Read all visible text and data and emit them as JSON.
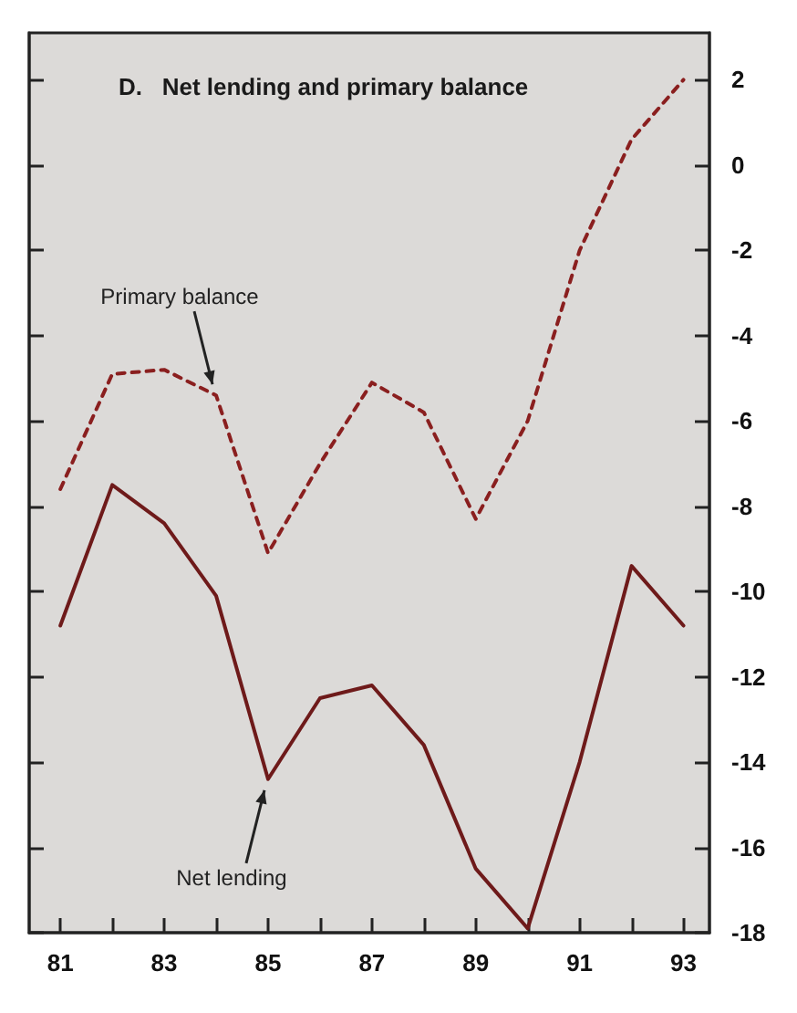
{
  "chart_data": {
    "type": "line",
    "title": "D.   Net lending and primary balance",
    "x": [
      81,
      82,
      83,
      84,
      85,
      86,
      87,
      88,
      89,
      90,
      91,
      92,
      93
    ],
    "series": [
      {
        "color": "#8a1f1f",
        "line_style": "dashed",
        "values": [
          -7.6,
          -4.9,
          -4.8,
          -5.4,
          -9.1,
          -7.0,
          -5.1,
          -5.8,
          -8.3,
          -6.0,
          -2.0,
          0.6,
          2.0
        ]
      },
      {
        "color": "#6e1a1a",
        "line_style": "solid",
        "values": [
          -10.8,
          -7.5,
          -8.4,
          -10.1,
          -14.4,
          -12.5,
          -12.2,
          -13.6,
          -16.5,
          -17.9,
          -14.0,
          -9.4,
          -10.8
        ]
      }
    ],
    "annotations": [
      {
        "text": "Primary balance",
        "x": 84,
        "y": -5.4
      },
      {
        "text": "Net lending",
        "x": 85,
        "y": -14.4
      }
    ],
    "xlim": [
      80.4,
      93.5
    ],
    "xticks": [
      81,
      {
        "value": 82,
        "label": null
      },
      83,
      {
        "value": 84,
        "label": null
      },
      85,
      {
        "value": 86,
        "label": null
      },
      87,
      {
        "value": 88,
        "label": null
      },
      89,
      {
        "value": 90,
        "label": null
      },
      91,
      {
        "value": 92,
        "label": null
      },
      93
    ],
    "ylim": [
      -18,
      3.1
    ],
    "yticks": [
      -18,
      -16,
      -14,
      -12,
      -10,
      -8,
      -6,
      -4,
      -2,
      0,
      2
    ],
    "grid": false,
    "marker": "none"
  }
}
